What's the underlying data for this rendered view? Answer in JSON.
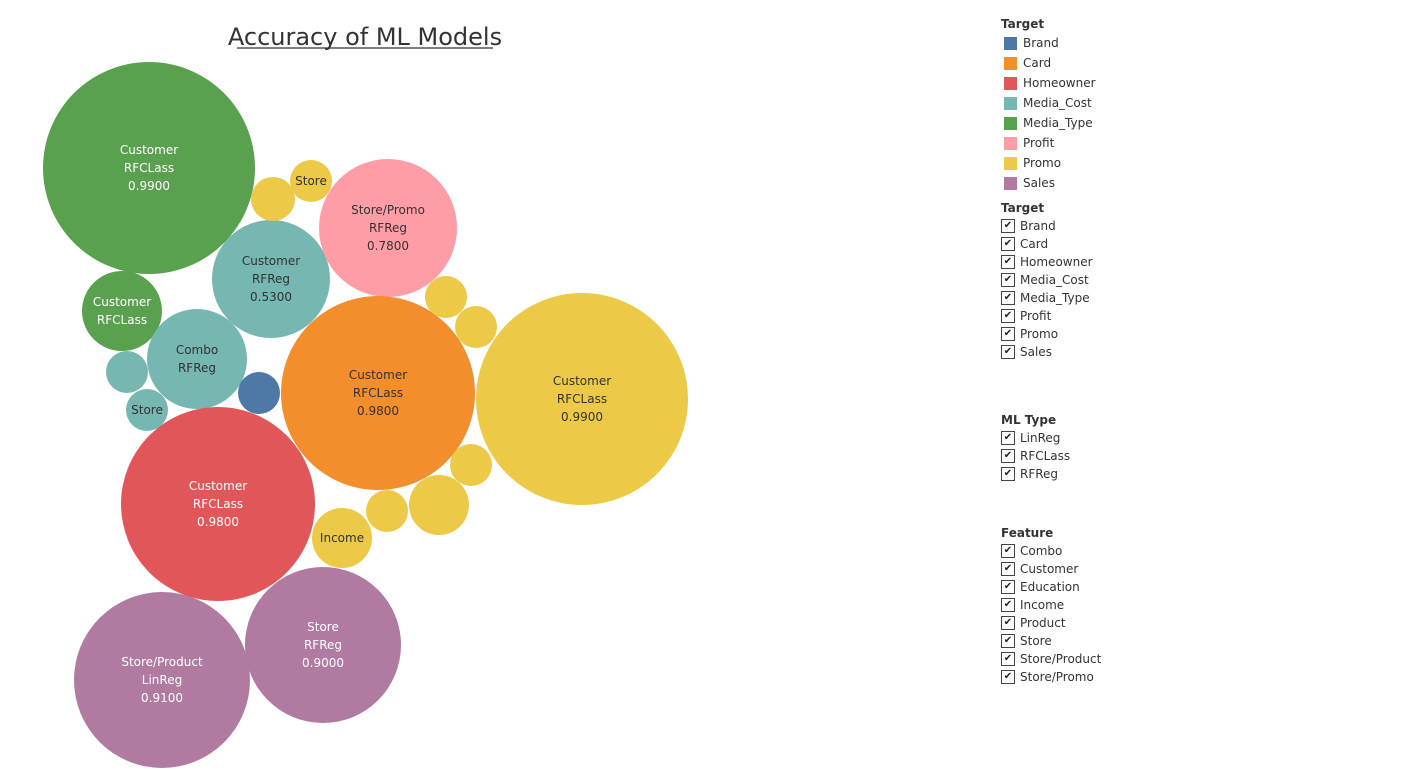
{
  "chart_data": {
    "type": "packed-bubble",
    "title": "Accuracy of ML Models",
    "bubbles": [
      {
        "target": "Media_Type",
        "feature": "Customer",
        "ml_type": "RFCLass",
        "accuracy": "0.9900",
        "lines": [
          "Customer",
          "RFCLass",
          "0.9900"
        ],
        "value": 0.99
      },
      {
        "target": "Media_Type",
        "feature": "Customer",
        "ml_type": "RFCLass",
        "lines": [
          "Customer",
          "RFCLass"
        ],
        "value": 0.21
      },
      {
        "target": "Media_Cost",
        "feature": "Customer",
        "ml_type": "RFReg",
        "accuracy": "0.5300",
        "lines": [
          "Customer",
          "RFReg",
          "0.5300"
        ],
        "value": 0.28
      },
      {
        "target": "Media_Cost",
        "feature": "Combo",
        "ml_type": "RFReg",
        "lines": [
          "Combo",
          "RFReg"
        ],
        "value": 0.2
      },
      {
        "target": "Media_Cost",
        "lines": [],
        "value": 0.04
      },
      {
        "target": "Media_Cost",
        "feature": "Store",
        "lines": [
          "Store"
        ],
        "value": 0.04
      },
      {
        "target": "Profit",
        "feature": "Store/Promo",
        "ml_type": "RFReg",
        "accuracy": "0.7800",
        "lines": [
          "Store/Promo",
          "RFReg",
          "0.7800"
        ],
        "value": 0.39
      },
      {
        "target": "Promo",
        "feature": "Store",
        "lines": [
          "Store"
        ],
        "value": 0.04
      },
      {
        "target": "Promo",
        "lines": [],
        "value": 0.04
      },
      {
        "target": "Brand",
        "lines": [],
        "value": 0.04
      },
      {
        "target": "Card",
        "feature": "Customer",
        "ml_type": "RFCLass",
        "accuracy": "0.9800",
        "lines": [
          "Customer",
          "RFCLass",
          "0.9800"
        ],
        "value": 0.82
      },
      {
        "target": "Promo",
        "feature": "Customer",
        "ml_type": "RFCLass",
        "accuracy": "0.9900",
        "lines": [
          "Customer",
          "RFCLass",
          "0.9900"
        ],
        "value": 0.99
      },
      {
        "target": "Promo",
        "lines": [],
        "value": 0.04
      },
      {
        "target": "Promo",
        "lines": [],
        "value": 0.04
      },
      {
        "target": "Promo",
        "lines": [],
        "value": 0.04
      },
      {
        "target": "Promo",
        "lines": [],
        "value": 0.08
      },
      {
        "target": "Promo",
        "lines": [],
        "value": 0.04
      },
      {
        "target": "Homeowner",
        "feature": "Customer",
        "ml_type": "RFCLass",
        "accuracy": "0.9800",
        "lines": [
          "Customer",
          "RFCLass",
          "0.9800"
        ],
        "value": 0.82
      },
      {
        "target": "Promo",
        "feature": "Income",
        "lines": [
          "Income"
        ],
        "value": 0.08
      },
      {
        "target": "Sales",
        "feature": "Store",
        "ml_type": "RFReg",
        "accuracy": "0.9000",
        "lines": [
          "Store",
          "RFReg",
          "0.9000"
        ],
        "value": 0.53
      },
      {
        "target": "Sales",
        "feature": "Store/Product",
        "ml_type": "LinReg",
        "accuracy": "0.9100",
        "lines": [
          "Store/Product",
          "LinReg",
          "0.9100"
        ],
        "value": 0.66
      }
    ]
  },
  "color_legend": {
    "title": "Target",
    "items": [
      {
        "label": "Brand",
        "color": "#4e79a7"
      },
      {
        "label": "Card",
        "color": "#f28e2b"
      },
      {
        "label": "Homeowner",
        "color": "#e15759"
      },
      {
        "label": "Media_Cost",
        "color": "#76b7b2"
      },
      {
        "label": "Media_Type",
        "color": "#59a14f"
      },
      {
        "label": "Profit",
        "color": "#ff9da7"
      },
      {
        "label": "Promo",
        "color": "#edc948"
      },
      {
        "label": "Sales",
        "color": "#b07aa1"
      }
    ]
  },
  "filters": [
    {
      "title": "Target",
      "check": "✔",
      "items": [
        "Brand",
        "Card",
        "Homeowner",
        "Media_Cost",
        "Media_Type",
        "Profit",
        "Promo",
        "Sales"
      ]
    },
    {
      "title": "ML Type",
      "check": "✔",
      "items": [
        "LinReg",
        "RFCLass",
        "RFReg"
      ]
    },
    {
      "title": "Feature",
      "check": "✔",
      "items": [
        "Combo",
        "Customer",
        "Education",
        "Income",
        "Product",
        "Store",
        "Store/Product",
        "Store/Promo"
      ]
    }
  ]
}
